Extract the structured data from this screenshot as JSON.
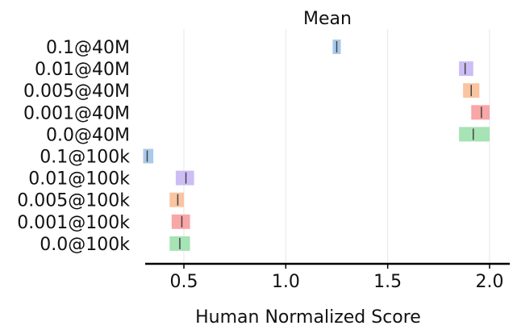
{
  "chart_data": {
    "type": "interval",
    "title": "Mean",
    "xlabel": "Human Normalized Score",
    "ylabel": "",
    "xlim": [
      0.3,
      2.1
    ],
    "xticks": [
      0.5,
      1.0,
      1.5,
      2.0
    ],
    "xtick_labels": [
      "0.5",
      "1.0",
      "1.5",
      "2.0"
    ],
    "grid": "vertical",
    "series": [
      {
        "label": "0.1@40M",
        "low": 1.23,
        "high": 1.27,
        "point": 1.25,
        "color": "#a9c9ea"
      },
      {
        "label": "0.01@40M",
        "low": 1.85,
        "high": 1.92,
        "point": 1.88,
        "color": "#cdbdf5"
      },
      {
        "label": "0.005@40M",
        "low": 1.87,
        "high": 1.95,
        "point": 1.91,
        "color": "#f9c4a0"
      },
      {
        "label": "0.001@40M",
        "low": 1.91,
        "high": 2.0,
        "point": 1.96,
        "color": "#f8a6a6"
      },
      {
        "label": "0.0@40M",
        "low": 1.85,
        "high": 2.0,
        "point": 1.92,
        "color": "#a6e3b5"
      },
      {
        "label": "0.1@100k",
        "low": 0.3,
        "high": 0.35,
        "point": 0.32,
        "color": "#a9c9ea"
      },
      {
        "label": "0.01@100k",
        "low": 0.46,
        "high": 0.55,
        "point": 0.51,
        "color": "#cdbdf5"
      },
      {
        "label": "0.005@100k",
        "low": 0.43,
        "high": 0.5,
        "point": 0.47,
        "color": "#f9c4a0"
      },
      {
        "label": "0.001@100k",
        "low": 0.44,
        "high": 0.53,
        "point": 0.49,
        "color": "#f8a6a6"
      },
      {
        "label": "0.0@100k",
        "low": 0.43,
        "high": 0.53,
        "point": 0.48,
        "color": "#a6e3b5"
      }
    ]
  }
}
